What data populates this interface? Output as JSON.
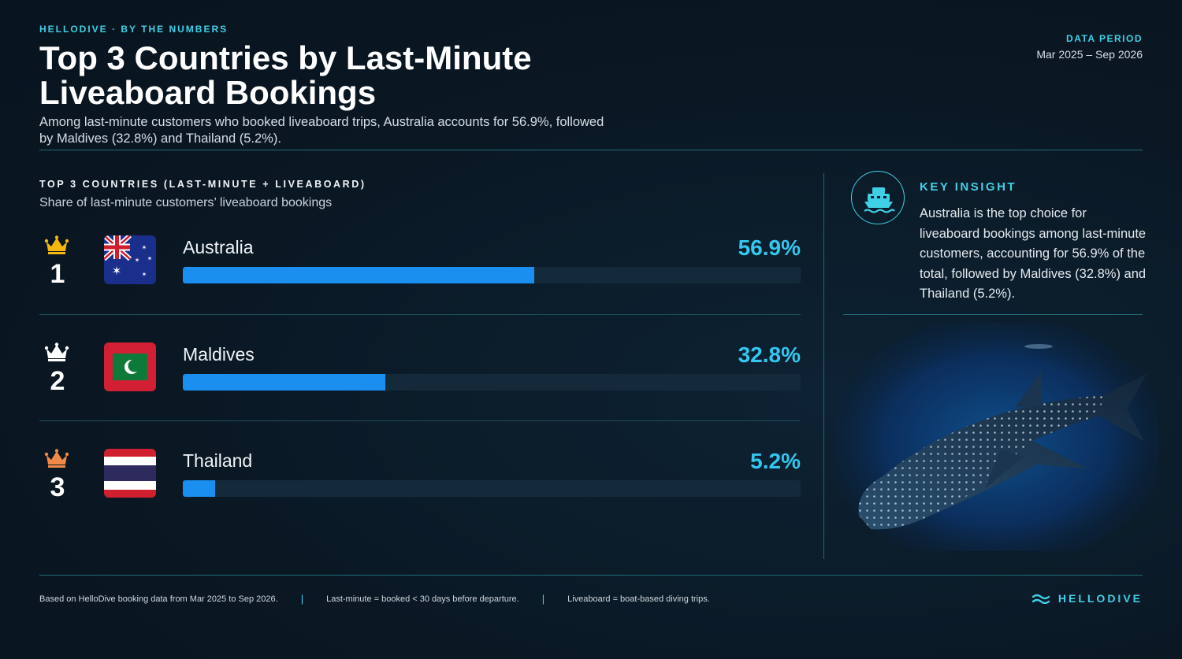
{
  "header": {
    "eyebrow": "HELLODIVE · BY THE NUMBERS",
    "title": "Top 3 Countries by Last-Minute Liveaboard Bookings",
    "subtitle": "Among last-minute customers who booked liveaboard trips, Australia accounts for 56.9%, followed by Maldives (32.8%) and Thailand (5.2%).",
    "period_label": "DATA PERIOD",
    "period_value": "Mar 2025 – Sep 2026"
  },
  "chart_data": {
    "type": "bar",
    "orientation": "horizontal",
    "title": "TOP 3 COUNTRIES (LAST-MINUTE + LIVEABOARD)",
    "subtitle": "Share of last-minute customers’ liveaboard bookings",
    "categories": [
      "Australia",
      "Maldives",
      "Thailand"
    ],
    "ranks": [
      "1",
      "2",
      "3"
    ],
    "values": [
      56.9,
      32.8,
      5.2
    ],
    "value_labels": [
      "56.9%",
      "32.8%",
      "5.2%"
    ],
    "xlim": [
      0,
      100
    ],
    "unit": "%",
    "flags": [
      "australia-flag-icon",
      "maldives-flag-icon",
      "thailand-flag-icon"
    ],
    "crown_colors": [
      "#f5b70f",
      "#ffffff",
      "#f08a4b"
    ],
    "bar_color": "#1a8ff0",
    "value_color": "#33c7ef"
  },
  "insight": {
    "icon": "boat-icon",
    "label": "KEY INSIGHT",
    "text": "Australia is the top choice for liveaboard bookings among last-minute customers, accounting for 56.9% of the total, followed by Maldives (32.8%) and Thailand (5.2%)."
  },
  "footer": {
    "notes": [
      "Based on HelloDive booking data from Mar 2025 to Sep 2026.",
      "Last-minute = booked < 30 days before departure.",
      "Liveaboard = boat-based diving trips."
    ],
    "separator": "|",
    "brand": "HELLODIVE",
    "brand_icon": "wave-logo-icon"
  },
  "colors": {
    "accent": "#3fd0e6",
    "background": "#0b1a26"
  }
}
